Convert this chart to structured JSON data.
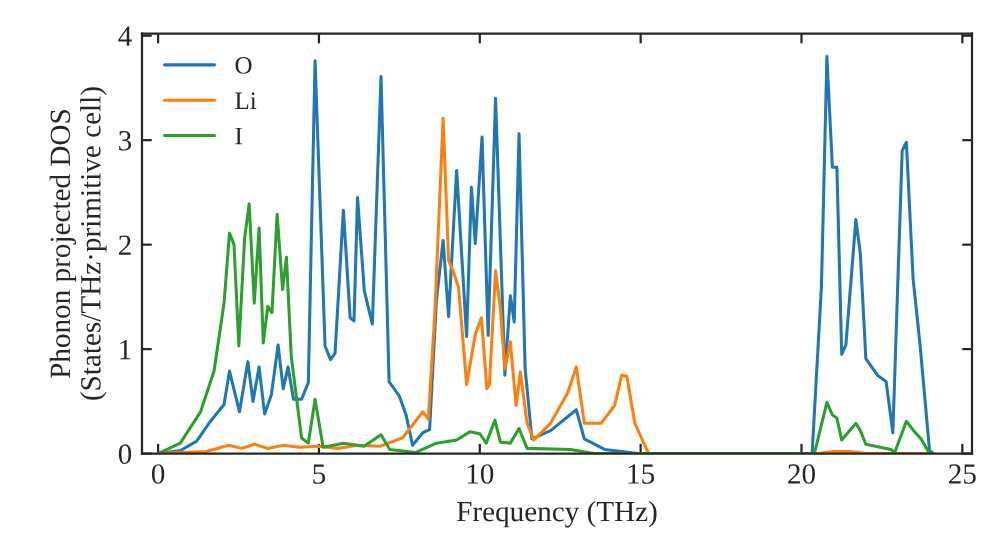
{
  "chart_data": {
    "type": "line",
    "xlabel": "Frequency (THz)",
    "ylabel": "Phonon projected DOS\n(States/THz·primitive cell)",
    "xlim": [
      -0.5,
      25.3
    ],
    "ylim": [
      0,
      4.02
    ],
    "xticks": [
      0,
      5,
      10,
      15,
      20,
      25
    ],
    "yticks": [
      0,
      1,
      2,
      3,
      4
    ],
    "grid": false,
    "legend": "top left",
    "line_style": "solid",
    "marker": "none",
    "series": [
      {
        "name": "O",
        "color": "#1f77b4",
        "x": [
          0,
          0.7,
          1.2,
          1.63,
          2.05,
          2.22,
          2.53,
          2.79,
          2.95,
          3.14,
          3.31,
          3.52,
          3.73,
          3.89,
          4.04,
          4.21,
          4.46,
          4.67,
          4.88,
          5.19,
          5.36,
          5.5,
          5.76,
          5.97,
          6.09,
          6.2,
          6.41,
          6.66,
          6.93,
          7.18,
          7.5,
          7.71,
          7.91,
          8.23,
          8.44,
          8.65,
          8.86,
          9.03,
          9.28,
          9.59,
          9.74,
          9.86,
          10.07,
          10.26,
          10.49,
          10.78,
          10.95,
          11.07,
          11.22,
          11.41,
          11.62,
          12.2,
          13.0,
          13.25,
          13.88,
          14.93,
          20.33,
          20.62,
          20.79,
          20.96,
          21.1,
          21.25,
          21.38,
          21.69,
          21.83,
          22.0,
          22.36,
          22.63,
          22.84,
          23.13,
          23.26,
          23.47,
          23.68,
          23.98,
          24.1
        ],
        "values": [
          0,
          0.03,
          0.12,
          0.31,
          0.47,
          0.79,
          0.4,
          0.88,
          0.5,
          0.83,
          0.38,
          0.56,
          1.04,
          0.62,
          0.83,
          0.52,
          0.52,
          0.68,
          3.76,
          1.03,
          0.9,
          0.96,
          2.33,
          1.3,
          1.27,
          2.45,
          1.56,
          1.24,
          3.61,
          0.69,
          0.55,
          0.37,
          0.08,
          0.2,
          0.23,
          1.46,
          2.04,
          1.31,
          2.71,
          1.12,
          2.55,
          2.01,
          3.03,
          1.13,
          3.4,
          0.75,
          1.51,
          1.26,
          3.06,
          0.81,
          0.14,
          0.22,
          0.42,
          0.14,
          0.04,
          0,
          0,
          1.6,
          3.8,
          2.74,
          2.74,
          0.95,
          1.04,
          2.24,
          1.91,
          0.91,
          0.75,
          0.69,
          0.2,
          2.9,
          2.98,
          1.67,
          1.06,
          0.03,
          0
        ]
      },
      {
        "name": "Li",
        "color": "#ff7f0e",
        "x": [
          0,
          1.5,
          2.2,
          2.6,
          3.0,
          3.4,
          3.9,
          4.4,
          5.0,
          5.6,
          6.2,
          6.9,
          7.6,
          8.23,
          8.4,
          8.6,
          8.86,
          9.03,
          9.17,
          9.34,
          9.59,
          9.86,
          10.05,
          10.22,
          10.3,
          10.49,
          10.64,
          10.78,
          10.95,
          11.13,
          11.26,
          11.47,
          11.68,
          12.2,
          12.73,
          13.0,
          13.25,
          13.77,
          14.19,
          14.41,
          14.57,
          14.82,
          15.25,
          20.5,
          21.0,
          21.5,
          22.0,
          24.1
        ],
        "values": [
          0,
          0.02,
          0.08,
          0.05,
          0.09,
          0.05,
          0.08,
          0.06,
          0.07,
          0.05,
          0.08,
          0.07,
          0.15,
          0.4,
          0.33,
          1.33,
          3.21,
          1.85,
          1.75,
          1.59,
          0.66,
          1.14,
          1.3,
          0.62,
          0.66,
          1.75,
          1.39,
          0.81,
          1.07,
          0.46,
          0.78,
          0.29,
          0.13,
          0.29,
          0.58,
          0.83,
          0.29,
          0.29,
          0.46,
          0.75,
          0.74,
          0.29,
          0,
          0,
          0.02,
          0.02,
          0,
          0
        ]
      },
      {
        "name": "I",
        "color": "#2ca02c",
        "x": [
          0,
          0.69,
          1.32,
          1.74,
          2.05,
          2.22,
          2.36,
          2.51,
          2.69,
          2.83,
          2.99,
          3.14,
          3.27,
          3.41,
          3.54,
          3.7,
          3.87,
          3.99,
          4.14,
          4.46,
          4.67,
          4.88,
          5.13,
          5.76,
          6.4,
          6.93,
          7.2,
          8.0,
          8.65,
          9.28,
          9.7,
          10.0,
          10.2,
          10.47,
          10.64,
          10.95,
          11.22,
          11.47,
          12.82,
          13.55,
          20.4,
          20.79,
          20.96,
          21.1,
          21.25,
          21.69,
          21.83,
          22.0,
          22.78,
          22.9,
          23.26,
          23.51,
          23.72,
          23.98,
          24.1
        ],
        "values": [
          0,
          0.1,
          0.4,
          0.79,
          1.44,
          2.11,
          2.0,
          1.03,
          2.06,
          2.39,
          1.44,
          2.16,
          1.06,
          1.41,
          1.35,
          2.29,
          1.57,
          1.88,
          0.93,
          0.15,
          0.1,
          0.52,
          0.06,
          0.1,
          0.07,
          0.18,
          0.04,
          0.01,
          0.1,
          0.13,
          0.21,
          0.19,
          0.1,
          0.32,
          0.11,
          0.1,
          0.24,
          0.05,
          0.04,
          0,
          0,
          0.49,
          0.37,
          0.34,
          0.13,
          0.29,
          0.22,
          0.09,
          0.04,
          0.01,
          0.31,
          0.21,
          0.14,
          0,
          0
        ]
      }
    ]
  }
}
